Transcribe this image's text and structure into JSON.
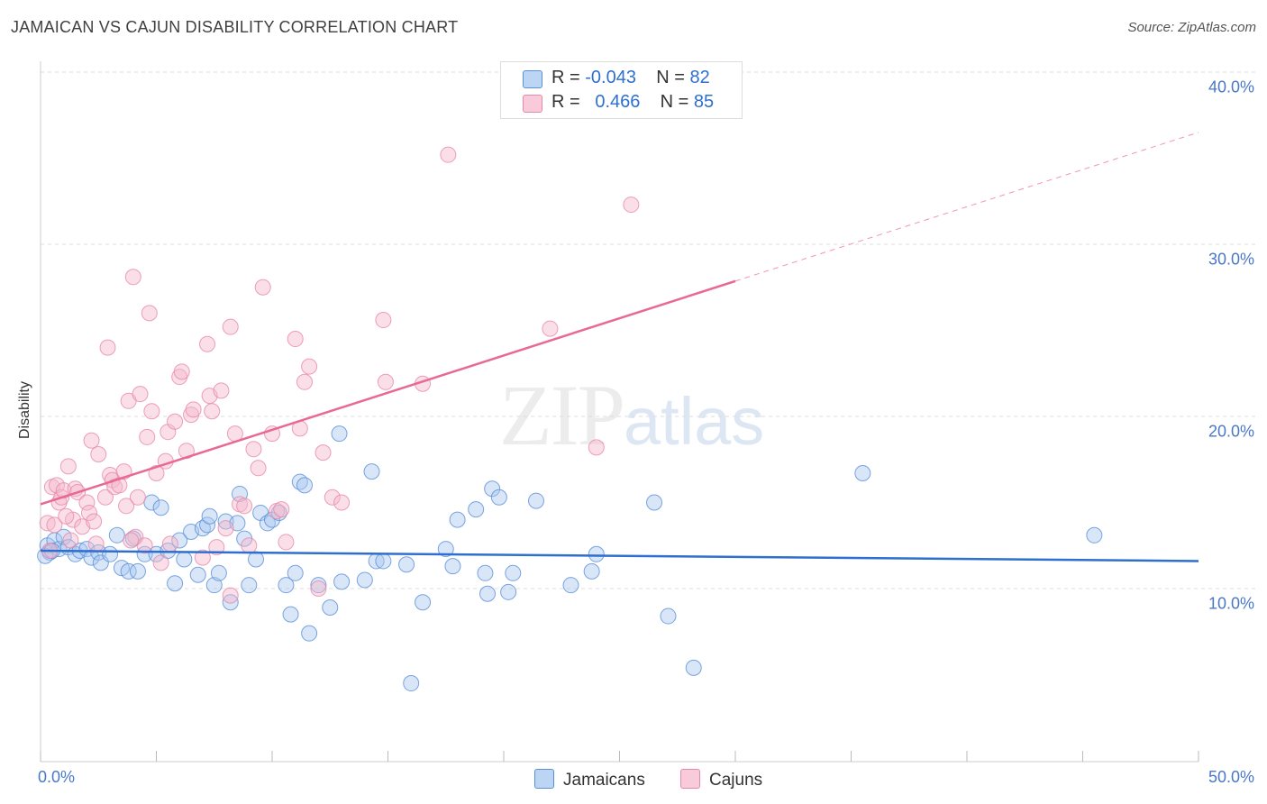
{
  "title": "JAMAICAN VS CAJUN DISABILITY CORRELATION CHART",
  "source": "Source: ZipAtlas.com",
  "watermark": {
    "zip": "ZIP",
    "atlas": "atlas"
  },
  "colors": {
    "jamaicans_fill": "#a8c8f0",
    "jamaicans_stroke": "#5b8fd8",
    "jamaicans_line": "#2e6fcf",
    "cajuns_fill": "#f5b8cc",
    "cajuns_stroke": "#e888a8",
    "cajuns_line": "#e86a94",
    "grid": "#dddddd",
    "tick_label": "#4a78c8"
  },
  "legend": {
    "rows": [
      {
        "r_label": "R =",
        "r_value": "-0.043",
        "n_label": "N =",
        "n_value": "82"
      },
      {
        "r_label": "R =",
        "r_value": "0.466",
        "n_label": "N =",
        "n_value": "85"
      }
    ]
  },
  "bottom_legend": {
    "jamaicans": "Jamaicans",
    "cajuns": "Cajuns"
  },
  "chart_data": {
    "type": "scatter",
    "title": "JAMAICAN VS CAJUN DISABILITY CORRELATION CHART",
    "xlabel": "",
    "ylabel": "Disability",
    "xlim": [
      0,
      50
    ],
    "ylim": [
      0,
      42
    ],
    "x_tick_labels": [
      "0.0%",
      "50.0%"
    ],
    "y_ticks": [
      10,
      20,
      30,
      40
    ],
    "y_tick_labels": [
      "10.0%",
      "20.0%",
      "30.0%",
      "40.0%"
    ],
    "grid": true,
    "legend_position": "top-center",
    "series": [
      {
        "name": "Jamaicans",
        "R": -0.043,
        "N": 82,
        "trend": {
          "x0": 0,
          "y0": 12.2,
          "x1": 50,
          "y1": 11.6,
          "solid_to": 50
        },
        "points": [
          [
            0.3,
            12.5
          ],
          [
            0.4,
            12.1
          ],
          [
            0.6,
            12.8
          ],
          [
            0.8,
            12.3
          ],
          [
            1.0,
            13.0
          ],
          [
            1.2,
            12.4
          ],
          [
            1.5,
            12.0
          ],
          [
            1.7,
            12.2
          ],
          [
            2.0,
            12.3
          ],
          [
            2.2,
            11.8
          ],
          [
            2.5,
            12.1
          ],
          [
            2.6,
            11.5
          ],
          [
            3.0,
            12.0
          ],
          [
            3.3,
            13.1
          ],
          [
            3.5,
            11.2
          ],
          [
            3.8,
            11.0
          ],
          [
            4.0,
            12.9
          ],
          [
            4.2,
            11.0
          ],
          [
            4.5,
            12.0
          ],
          [
            4.8,
            15.0
          ],
          [
            5.0,
            12.0
          ],
          [
            5.2,
            14.7
          ],
          [
            5.5,
            12.2
          ],
          [
            5.8,
            10.3
          ],
          [
            6.0,
            12.8
          ],
          [
            6.2,
            11.7
          ],
          [
            6.5,
            13.3
          ],
          [
            6.8,
            10.8
          ],
          [
            7.0,
            13.5
          ],
          [
            7.2,
            13.7
          ],
          [
            7.3,
            14.2
          ],
          [
            7.5,
            10.2
          ],
          [
            7.7,
            10.9
          ],
          [
            8.0,
            13.9
          ],
          [
            8.2,
            9.2
          ],
          [
            8.5,
            13.8
          ],
          [
            8.6,
            15.5
          ],
          [
            8.8,
            12.9
          ],
          [
            9.0,
            10.2
          ],
          [
            9.3,
            11.7
          ],
          [
            9.5,
            14.4
          ],
          [
            9.8,
            13.8
          ],
          [
            10.0,
            14.0
          ],
          [
            10.3,
            14.4
          ],
          [
            10.6,
            10.2
          ],
          [
            10.8,
            8.5
          ],
          [
            11.0,
            10.9
          ],
          [
            11.2,
            16.2
          ],
          [
            11.4,
            16.0
          ],
          [
            11.6,
            7.4
          ],
          [
            12.0,
            10.2
          ],
          [
            12.5,
            8.9
          ],
          [
            12.9,
            19.0
          ],
          [
            13.0,
            10.4
          ],
          [
            14.0,
            10.5
          ],
          [
            14.3,
            16.8
          ],
          [
            14.5,
            11.6
          ],
          [
            14.8,
            11.6
          ],
          [
            15.8,
            11.4
          ],
          [
            16.0,
            4.5
          ],
          [
            16.5,
            9.2
          ],
          [
            17.5,
            12.3
          ],
          [
            17.8,
            11.3
          ],
          [
            18.0,
            14.0
          ],
          [
            18.8,
            14.6
          ],
          [
            19.2,
            10.9
          ],
          [
            19.3,
            9.7
          ],
          [
            19.5,
            15.8
          ],
          [
            19.8,
            15.3
          ],
          [
            20.2,
            9.8
          ],
          [
            20.4,
            10.9
          ],
          [
            21.4,
            15.1
          ],
          [
            22.9,
            10.2
          ],
          [
            23.8,
            11.0
          ],
          [
            24.0,
            12.0
          ],
          [
            26.5,
            15.0
          ],
          [
            27.1,
            8.4
          ],
          [
            28.2,
            5.4
          ],
          [
            35.5,
            16.7
          ],
          [
            45.5,
            13.1
          ],
          [
            0.2,
            11.9
          ],
          [
            0.5,
            12.2
          ]
        ]
      },
      {
        "name": "Cajuns",
        "R": 0.466,
        "N": 85,
        "trend": {
          "x0": 0,
          "y0": 14.9,
          "x1": 50,
          "y1": 36.5,
          "solid_to": 30
        },
        "points": [
          [
            0.3,
            13.8
          ],
          [
            0.5,
            15.9
          ],
          [
            0.6,
            13.7
          ],
          [
            0.7,
            16.0
          ],
          [
            0.8,
            15.0
          ],
          [
            0.9,
            15.3
          ],
          [
            1.0,
            15.7
          ],
          [
            1.2,
            17.1
          ],
          [
            1.3,
            12.8
          ],
          [
            1.4,
            14.0
          ],
          [
            1.5,
            15.8
          ],
          [
            1.6,
            15.6
          ],
          [
            1.8,
            13.6
          ],
          [
            2.0,
            15.0
          ],
          [
            2.1,
            14.4
          ],
          [
            2.2,
            18.6
          ],
          [
            2.3,
            13.9
          ],
          [
            2.4,
            12.6
          ],
          [
            2.5,
            17.8
          ],
          [
            2.8,
            15.3
          ],
          [
            2.9,
            24.0
          ],
          [
            3.0,
            16.6
          ],
          [
            3.1,
            16.3
          ],
          [
            3.2,
            15.9
          ],
          [
            3.4,
            16.0
          ],
          [
            3.6,
            16.8
          ],
          [
            3.7,
            14.8
          ],
          [
            3.8,
            20.9
          ],
          [
            4.0,
            28.1
          ],
          [
            4.1,
            13.0
          ],
          [
            4.2,
            15.3
          ],
          [
            4.3,
            21.3
          ],
          [
            4.5,
            12.5
          ],
          [
            4.6,
            18.8
          ],
          [
            4.7,
            26.0
          ],
          [
            4.8,
            20.3
          ],
          [
            5.0,
            16.7
          ],
          [
            5.2,
            11.5
          ],
          [
            5.4,
            17.4
          ],
          [
            5.5,
            19.1
          ],
          [
            5.6,
            12.6
          ],
          [
            5.8,
            19.7
          ],
          [
            6.0,
            22.3
          ],
          [
            6.1,
            22.6
          ],
          [
            6.3,
            18.0
          ],
          [
            6.5,
            20.1
          ],
          [
            6.6,
            20.4
          ],
          [
            7.0,
            11.8
          ],
          [
            7.2,
            24.2
          ],
          [
            7.3,
            21.2
          ],
          [
            7.4,
            20.3
          ],
          [
            7.6,
            12.4
          ],
          [
            7.8,
            21.5
          ],
          [
            8.0,
            13.5
          ],
          [
            8.2,
            25.2
          ],
          [
            8.4,
            19.0
          ],
          [
            8.6,
            14.9
          ],
          [
            8.8,
            14.8
          ],
          [
            9.0,
            12.5
          ],
          [
            9.2,
            18.1
          ],
          [
            9.4,
            17.0
          ],
          [
            9.6,
            27.5
          ],
          [
            10.0,
            19.0
          ],
          [
            10.2,
            14.5
          ],
          [
            10.4,
            14.6
          ],
          [
            10.6,
            12.7
          ],
          [
            11.0,
            24.5
          ],
          [
            11.2,
            19.3
          ],
          [
            11.4,
            22.0
          ],
          [
            11.6,
            22.9
          ],
          [
            12.0,
            10.0
          ],
          [
            12.2,
            17.9
          ],
          [
            12.6,
            15.3
          ],
          [
            13.0,
            15.0
          ],
          [
            14.8,
            25.6
          ],
          [
            14.9,
            22.0
          ],
          [
            16.5,
            21.9
          ],
          [
            17.6,
            35.2
          ],
          [
            22.0,
            25.1
          ],
          [
            24.0,
            18.2
          ],
          [
            25.5,
            32.3
          ],
          [
            8.2,
            9.6
          ],
          [
            1.1,
            14.2
          ],
          [
            0.4,
            12.2
          ],
          [
            3.9,
            12.8
          ]
        ]
      }
    ]
  }
}
